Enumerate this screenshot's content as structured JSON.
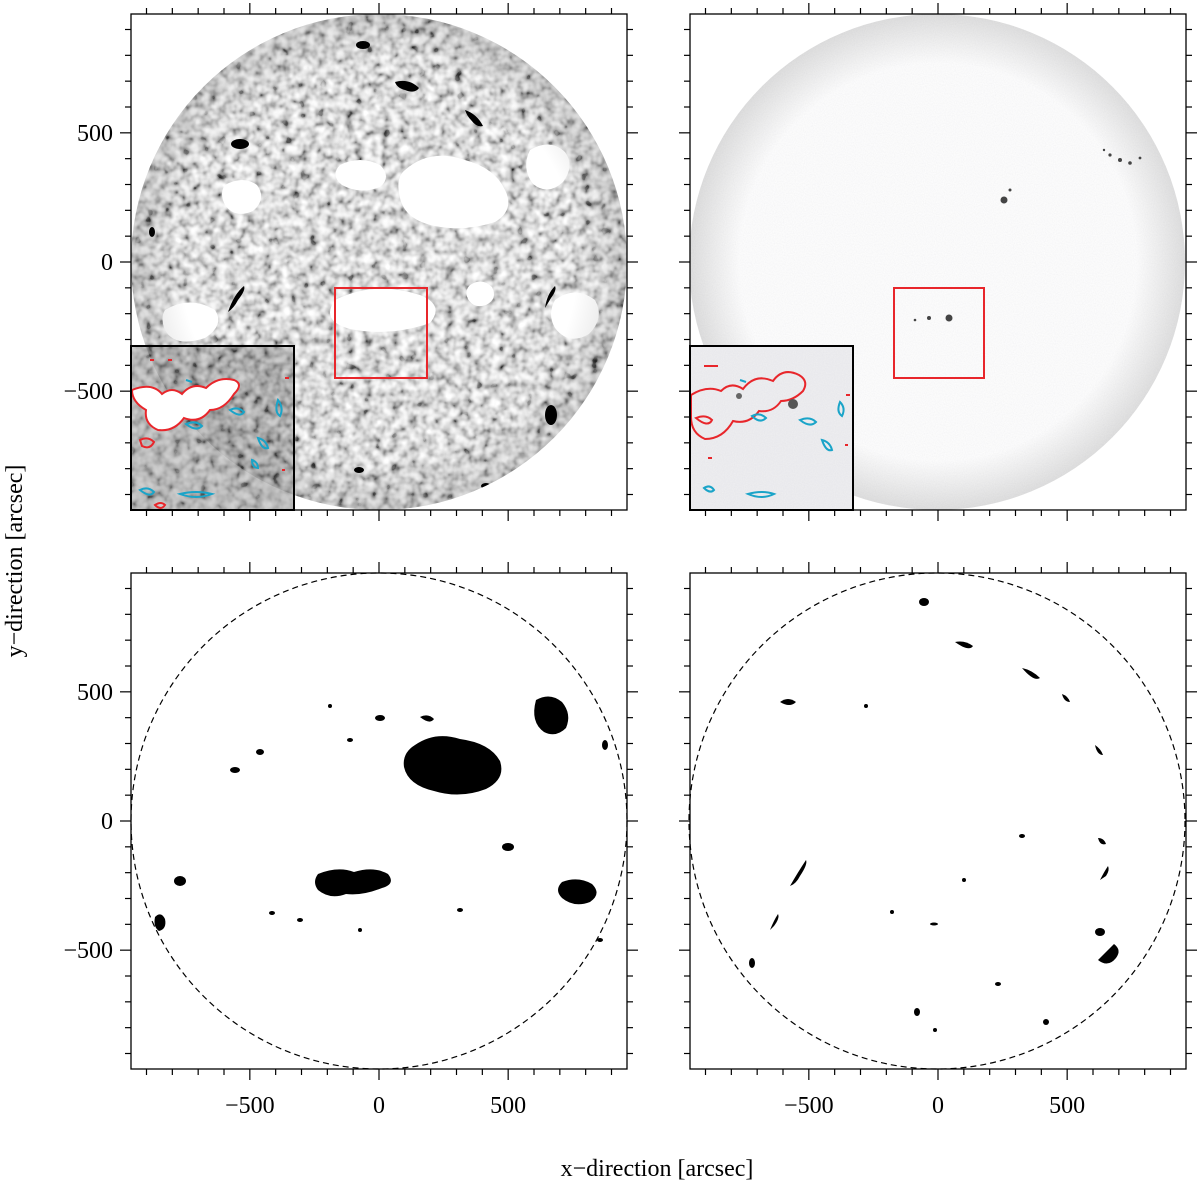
{
  "figure": {
    "xlabel": "x−direction [arcsec]",
    "ylabel": "y−direction [arcsec]",
    "tick_values": [
      -500,
      0,
      500
    ],
    "tick_labels": [
      "−500",
      "0",
      "500"
    ],
    "axis_range_arcsec": [
      -960,
      960
    ],
    "colors": {
      "box": "#e8262b",
      "contour_positive": "#e8262b",
      "contour_negative": "#1aa4c8",
      "mask": "#000000"
    }
  },
  "panels": [
    {
      "name": "h-alpha-full-disk",
      "kind": "image",
      "inset": true,
      "box": true
    },
    {
      "name": "continuum-full-disk",
      "kind": "image",
      "inset": true,
      "box": true
    },
    {
      "name": "bright-region-mask",
      "kind": "mask"
    },
    {
      "name": "dark-feature-mask",
      "kind": "mask"
    }
  ]
}
